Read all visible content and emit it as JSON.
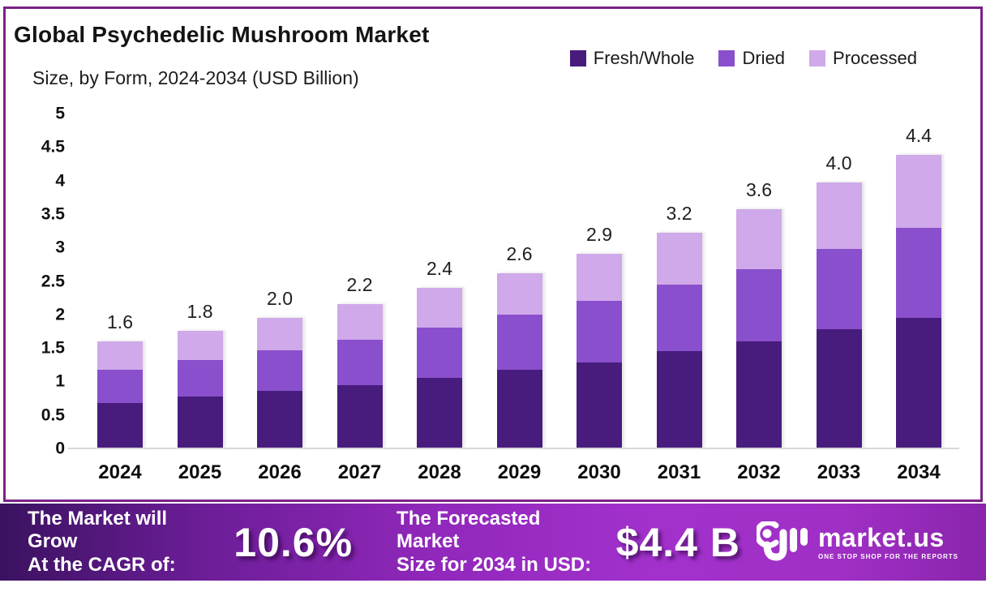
{
  "card": {
    "title": "Global Psychedelic Mushroom Market",
    "subtitle": "Size, by Form, 2024-2034 (USD Billion)"
  },
  "legend": [
    {
      "label": "Fresh/Whole",
      "color": "#471C7D"
    },
    {
      "label": "Dried",
      "color": "#8A4FCC"
    },
    {
      "label": "Processed",
      "color": "#CFA9E9"
    }
  ],
  "chart_data": {
    "type": "bar",
    "stacked": true,
    "title": "Global Psychedelic Mushroom Market Size, by Form, 2024-2034 (USD Billion)",
    "categories": [
      "2024",
      "2025",
      "2026",
      "2027",
      "2028",
      "2029",
      "2030",
      "2031",
      "2032",
      "2033",
      "2034"
    ],
    "series": [
      {
        "name": "Fresh/Whole",
        "color": "#471C7D",
        "values": [
          0.68,
          0.78,
          0.86,
          0.95,
          1.05,
          1.17,
          1.28,
          1.45,
          1.6,
          1.78,
          1.95
        ]
      },
      {
        "name": "Dried",
        "color": "#8A4FCC",
        "values": [
          0.5,
          0.54,
          0.61,
          0.67,
          0.76,
          0.83,
          0.92,
          1.0,
          1.08,
          1.2,
          1.34
        ]
      },
      {
        "name": "Processed",
        "color": "#CFA9E9",
        "values": [
          0.42,
          0.44,
          0.48,
          0.53,
          0.59,
          0.62,
          0.7,
          0.77,
          0.89,
          0.99,
          1.09
        ]
      }
    ],
    "total_labels": [
      "1.6",
      "1.8",
      "2.0",
      "2.2",
      "2.4",
      "2.6",
      "2.9",
      "3.2",
      "3.6",
      "4.0",
      "4.4"
    ],
    "ylim": [
      0,
      5
    ],
    "yticks": [
      "0",
      "0.5",
      "1",
      "1.5",
      "2",
      "2.5",
      "3",
      "3.5",
      "4",
      "4.5",
      "5"
    ],
    "grid": false,
    "legend_position": "top-right"
  },
  "banner": {
    "cagr_label_line1": "The Market will Grow",
    "cagr_label_line2": "At the CAGR of:",
    "cagr_value": "10.6%",
    "forecast_label_line1": "The Forecasted Market",
    "forecast_label_line2": "Size for 2034 in USD:",
    "forecast_value": "$4.4 B",
    "brand_name": "market.us",
    "brand_tagline": "ONE STOP SHOP FOR THE REPORTS"
  },
  "colors": {
    "card_border": "#7A2186",
    "axis_line": "#D8D8D8",
    "banner_gradient_left": "#3A1260",
    "banner_gradient_mid": "#A231CC",
    "banner_gradient_right": "#8A25AC"
  }
}
